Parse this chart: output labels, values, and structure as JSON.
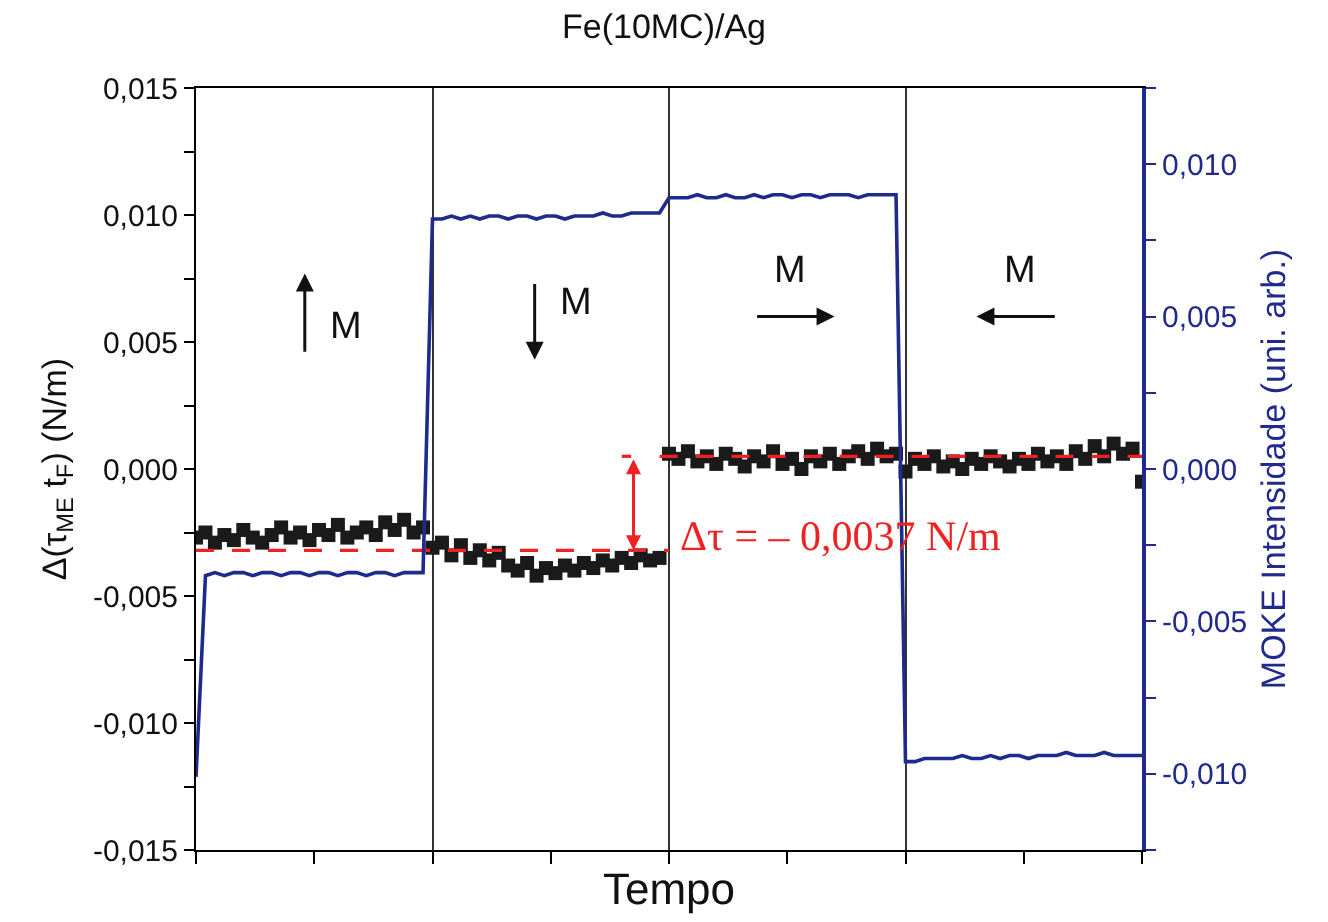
{
  "chart_data": {
    "type": "scatter",
    "title": "Fe(10MC)/Ag",
    "xlabel": "Tempo",
    "ylabel": "Δ(τ$_{ME}$ t$_{F}$) (N/m)",
    "y2label": "MOKE Intensidade (uni. arb.)",
    "categories": [
      null,
      null,
      null,
      null,
      null,
      null,
      null,
      null,
      null,
      null,
      null,
      null,
      null,
      null,
      null,
      null,
      null,
      null,
      null,
      null,
      null,
      null,
      null,
      null,
      null,
      null,
      null,
      null,
      null,
      null,
      null,
      null,
      null,
      null,
      null,
      null,
      null,
      null,
      null,
      null,
      null,
      null,
      null,
      null,
      null,
      null,
      null,
      null,
      null,
      null,
      null,
      null,
      null,
      null,
      null,
      null,
      null,
      null,
      null,
      null,
      null,
      null,
      null,
      null,
      null,
      null,
      null,
      null,
      null,
      null,
      null,
      null,
      null,
      null,
      null,
      null,
      null,
      null,
      null,
      null,
      null,
      null,
      null,
      null,
      null,
      null,
      null,
      null,
      null,
      null,
      null,
      null,
      null,
      null,
      null,
      null,
      null,
      null,
      null,
      null,
      null
    ],
    "ylim": [
      -0.015,
      0.015
    ],
    "yticks": [
      {
        "value": -0.015,
        "label": "-0,015"
      },
      {
        "value": -0.0125,
        "label": null
      },
      {
        "value": -0.01,
        "label": "-0,010"
      },
      {
        "value": -0.0075,
        "label": null
      },
      {
        "value": -0.005,
        "label": "-0,005"
      },
      {
        "value": -0.0025,
        "label": null
      },
      {
        "value": 0,
        "label": "0,000"
      },
      {
        "value": 0.0025,
        "label": null
      },
      {
        "value": 0.005,
        "label": "0,005"
      },
      {
        "value": 0.0075,
        "label": null
      },
      {
        "value": 0.01,
        "label": "0,010"
      },
      {
        "value": 0.0125,
        "label": null
      },
      {
        "value": 0.015,
        "label": "0,015"
      }
    ],
    "y2lim": [
      -0.0125,
      0.0125
    ],
    "y2ticks": [
      {
        "value": -0.0125,
        "label": null
      },
      {
        "value": -0.01,
        "label": "-0,010"
      },
      {
        "value": -0.0075,
        "label": null
      },
      {
        "value": -0.005,
        "label": "-0,005"
      },
      {
        "value": -0.0025,
        "label": null
      },
      {
        "value": 0,
        "label": "0,000"
      },
      {
        "value": 0.0025,
        "label": null
      },
      {
        "value": 0.005,
        "label": "0,005"
      },
      {
        "value": 0.0075,
        "label": null
      },
      {
        "value": 0.01,
        "label": "0,010"
      },
      {
        "value": 0.0125,
        "label": null
      }
    ],
    "grid": "x",
    "series": [
      {
        "marker": "square",
        "color": "#1a1a1a",
        "values": [
          -0.0027,
          -0.0025,
          -0.0029,
          -0.0026,
          -0.0028,
          -0.0024,
          -0.0027,
          -0.0029,
          -0.0026,
          -0.0023,
          -0.0027,
          -0.0025,
          -0.0028,
          -0.0024,
          -0.0026,
          -0.0022,
          -0.0027,
          -0.0025,
          -0.0023,
          -0.0026,
          -0.0021,
          -0.0024,
          -0.002,
          -0.0025,
          -0.0023,
          -0.0031,
          -0.0029,
          -0.0034,
          -0.003,
          -0.0035,
          -0.0032,
          -0.0036,
          -0.0033,
          -0.0038,
          -0.004,
          -0.0037,
          -0.0042,
          -0.0039,
          -0.0041,
          -0.0038,
          -0.004,
          -0.0037,
          -0.0039,
          -0.0036,
          -0.0038,
          -0.0035,
          -0.0037,
          -0.0034,
          -0.0036,
          -0.0035,
          0.0006,
          0.0004,
          0.0007,
          0.0003,
          0.0005,
          0.0002,
          0.0006,
          0.0004,
          0.0001,
          0.0005,
          0.0003,
          0.0007,
          0.0002,
          0.0004,
          0,
          0.0005,
          0.0003,
          0.0006,
          0.0002,
          0.0005,
          0.0007,
          0.0004,
          0.0008,
          0.0005,
          0.0006,
          -0.0001,
          0.0004,
          0.0002,
          0.0005,
          0.0001,
          0.0003,
          0,
          0.0004,
          0.0002,
          0.0005,
          0.0003,
          0.0001,
          0.0004,
          0.0002,
          0.0006,
          0.0003,
          0.0005,
          0.0002,
          0.0007,
          0.0004,
          0.0009,
          0.0005,
          0.001,
          0.0006,
          0.0008,
          -0.0005
        ]
      },
      {
        "type": "line",
        "axis": "y2",
        "marker": "none",
        "line_style": "solid",
        "color": "#1f2a8c",
        "values": [
          -0.0101,
          -0.0035,
          -0.0034,
          -0.0035,
          -0.0034,
          -0.0034,
          -0.0035,
          -0.0034,
          -0.0034,
          -0.0035,
          -0.0034,
          -0.0034,
          -0.0035,
          -0.0034,
          -0.0034,
          -0.0035,
          -0.0034,
          -0.0034,
          -0.0035,
          -0.0034,
          -0.0034,
          -0.0035,
          -0.0034,
          -0.0034,
          -0.0034,
          0.0082,
          0.0082,
          0.0083,
          0.0082,
          0.0083,
          0.0082,
          0.0083,
          0.0083,
          0.0082,
          0.0083,
          0.0083,
          0.0082,
          0.0083,
          0.0083,
          0.0082,
          0.0083,
          0.0083,
          0.0083,
          0.0084,
          0.0083,
          0.0083,
          0.0084,
          0.0084,
          0.0084,
          0.0084,
          0.0089,
          0.0089,
          0.0089,
          0.009,
          0.0089,
          0.0089,
          0.009,
          0.0089,
          0.0089,
          0.009,
          0.0089,
          0.009,
          0.009,
          0.0089,
          0.009,
          0.009,
          0.0089,
          0.009,
          0.009,
          0.009,
          0.0089,
          0.009,
          0.009,
          0.009,
          0.009,
          -0.0096,
          -0.0096,
          -0.0095,
          -0.0095,
          -0.0095,
          -0.0095,
          -0.0094,
          -0.0095,
          -0.0095,
          -0.0094,
          -0.0095,
          -0.0094,
          -0.0094,
          -0.0095,
          -0.0094,
          -0.0094,
          -0.0094,
          -0.0093,
          -0.0094,
          -0.0094,
          -0.0094,
          -0.0093,
          -0.0094,
          -0.0094,
          -0.0094,
          -0.0094
        ]
      },
      {
        "type": "line",
        "marker": "none",
        "line_style": "dashed",
        "color": "#ee2222",
        "values": [
          -0.0032,
          -0.0032,
          -0.0032,
          -0.0032,
          -0.0032,
          -0.0032,
          -0.0032,
          -0.0032,
          -0.0032,
          -0.0032,
          -0.0032,
          -0.0032,
          -0.0032,
          -0.0032,
          -0.0032,
          -0.0032,
          -0.0032,
          -0.0032,
          -0.0032,
          -0.0032,
          -0.0032,
          -0.0032,
          -0.0032,
          -0.0032,
          -0.0032,
          -0.0032,
          -0.0032,
          -0.0032,
          -0.0032,
          -0.0032,
          -0.0032,
          -0.0032,
          -0.0032,
          -0.0032,
          -0.0032,
          -0.0032,
          -0.0032,
          -0.0032,
          -0.0032,
          -0.0032,
          -0.0032,
          -0.0032,
          -0.0032,
          -0.0032,
          -0.0032,
          -0.0032,
          -0.0032,
          -0.0032,
          -0.0032,
          -0.0032,
          -0.0032,
          null,
          null,
          null,
          null,
          null,
          null,
          null,
          null,
          null,
          null,
          null,
          null,
          null,
          null,
          null,
          null,
          null,
          null,
          null,
          null,
          null,
          null,
          null,
          null,
          null,
          null,
          null,
          null,
          null,
          null,
          null,
          null,
          null,
          null,
          null,
          null,
          null,
          null,
          null,
          null,
          null,
          null,
          null,
          null,
          null,
          null,
          null,
          null,
          null,
          null
        ]
      },
      {
        "type": "line",
        "marker": "none",
        "line_style": "dashed",
        "color": "#ee2222",
        "values": [
          null,
          null,
          null,
          null,
          null,
          null,
          null,
          null,
          null,
          null,
          null,
          null,
          null,
          null,
          null,
          null,
          null,
          null,
          null,
          null,
          null,
          null,
          null,
          null,
          null,
          null,
          null,
          null,
          null,
          null,
          null,
          null,
          null,
          null,
          null,
          null,
          null,
          null,
          null,
          null,
          null,
          null,
          null,
          null,
          null,
          0.0005,
          0.0005,
          null,
          null,
          0.0005,
          0.0005,
          0.0005,
          0.0005,
          0.0005,
          0.0005,
          0.0005,
          0.0005,
          0.0005,
          0.0005,
          0.0005,
          0.0005,
          0.0005,
          0.0005,
          0.0005,
          0.0005,
          0.0005,
          0.0005,
          0.0005,
          0.0005,
          0.0005,
          0.0005,
          0.0005,
          0.0005,
          0.0005,
          0.0005,
          0.0005,
          0.0005,
          0.0005,
          0.0005,
          0.0005,
          0.0005,
          0.0005,
          0.0005,
          0.0005,
          0.0005,
          0.0005,
          0.0005,
          0.0005,
          0.0005,
          0.0005,
          0.0005,
          0.0005,
          0.0005,
          0.0005,
          0.0005,
          0.0005,
          0.0005,
          0.0005,
          0.0005,
          0.0005,
          0.0005
        ]
      }
    ],
    "annotations": [
      "M",
      "M",
      "M",
      "M",
      "Δτ = – 0,0037 N/m"
    ]
  }
}
